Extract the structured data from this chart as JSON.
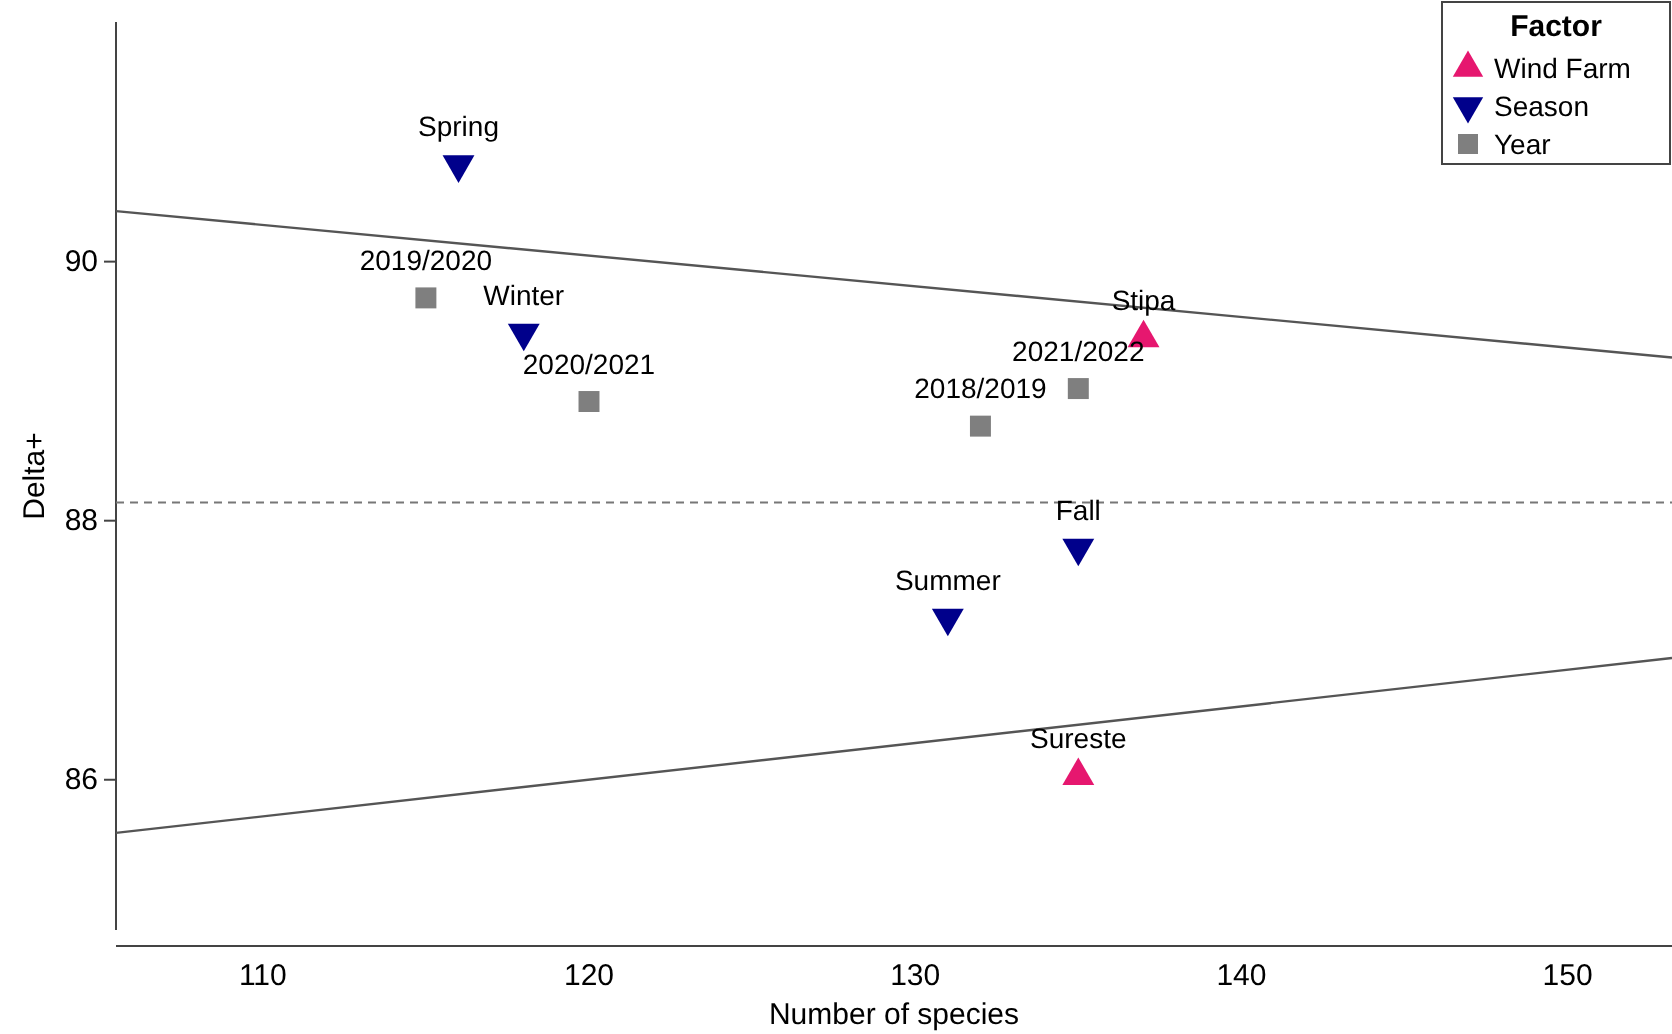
{
  "chart_data": {
    "type": "scatter",
    "xlabel": "Number of species",
    "ylabel": "Delta+",
    "legend_title": "Factor",
    "legend": "top right",
    "grid": false,
    "xlim": [
      105.5,
      153.2
    ],
    "xticks": [
      110,
      120,
      130,
      140,
      150
    ],
    "ylim": [
      84.84,
      91.85
    ],
    "yticks": [
      86,
      88,
      90
    ],
    "series": [
      {
        "name": "Wind Farm",
        "color": "#e6176f",
        "marker": "triangle",
        "x": [
          137,
          135
        ],
        "values": [
          89.41,
          86.03
        ]
      },
      {
        "name": "Season",
        "color": "#00008b",
        "marker": "triangle-down",
        "x": [
          116,
          118,
          135,
          131
        ],
        "values": [
          90.75,
          89.45,
          87.79,
          87.25
        ]
      },
      {
        "name": "Year",
        "color": "#7f7f7f",
        "marker": "square",
        "x": [
          115,
          120,
          132,
          135
        ],
        "values": [
          89.72,
          88.92,
          88.73,
          89.02
        ]
      },
      {
        "type": "line",
        "color": "#555555",
        "line_style": "solid",
        "x": [
          105.5,
          153.2
        ],
        "values": [
          90.39,
          89.26
        ]
      },
      {
        "type": "line",
        "color": "#555555",
        "line_style": "solid",
        "x": [
          105.5,
          153.2
        ],
        "values": [
          85.59,
          86.94
        ]
      }
    ],
    "ref_lines": [
      {
        "axis": "y",
        "value": 88.14,
        "color": "#777777",
        "line_style": "dashed"
      }
    ],
    "annotations": [
      {
        "text": "Stipa",
        "x": 137,
        "y": 89.41
      },
      {
        "text": "Sureste",
        "x": 135,
        "y": 86.03
      },
      {
        "text": "Spring",
        "x": 116,
        "y": 90.75
      },
      {
        "text": "Winter",
        "x": 118,
        "y": 89.45
      },
      {
        "text": "Fall",
        "x": 135,
        "y": 87.79
      },
      {
        "text": "Summer",
        "x": 131,
        "y": 87.25
      },
      {
        "text": "2019/2020",
        "x": 115,
        "y": 89.72
      },
      {
        "text": "2020/2021",
        "x": 120,
        "y": 88.92
      },
      {
        "text": "2018/2019",
        "x": 132,
        "y": 88.73
      },
      {
        "text": "2021/2022",
        "x": 135,
        "y": 89.02
      }
    ]
  }
}
